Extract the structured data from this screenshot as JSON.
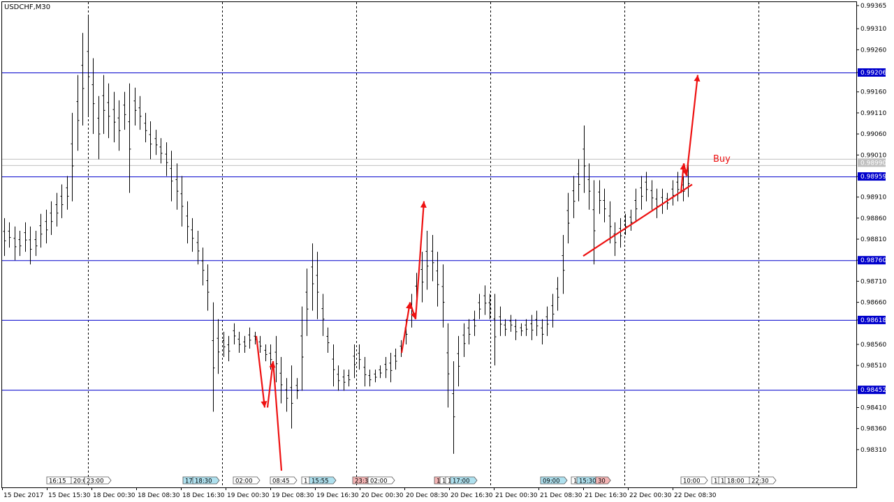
{
  "symbol_label": "USDCHF,M30",
  "annotation_buy": "Buy",
  "colors": {
    "background": "#ffffff",
    "candles": "#000000",
    "grid": "#000000",
    "hline": "#0000cc",
    "hline_label_bg": "#0000cc",
    "current_price_label_bg": "#c0c0c0",
    "arrows": "#ee1111",
    "buy_text": "#ee1111",
    "event_blue": "#aee0ee",
    "event_red": "#f5b5b5",
    "event_white": "#ffffff"
  },
  "chart_data": {
    "type": "candlestick-bar",
    "instrument": "USDCHF",
    "timeframe": "M30",
    "ylim": [
      0.9827,
      0.99365
    ],
    "y_ticks": [
      "0.99365",
      "0.99310",
      "0.99260",
      "0.99206",
      "0.99160",
      "0.99110",
      "0.99060",
      "0.99010",
      "0.98959",
      "0.98910",
      "0.98860",
      "0.98810",
      "0.98760",
      "0.98710",
      "0.98660",
      "0.98618",
      "0.98560",
      "0.98510",
      "0.98452",
      "0.98410",
      "0.98360",
      "0.98310"
    ],
    "x_ticks": [
      "15 Dec 2017",
      "15 Dec 15:30",
      "18 Dec 00:30",
      "18 Dec 08:30",
      "18 Dec 16:30",
      "19 Dec 00:30",
      "19 Dec 08:30",
      "19 Dec 16:30",
      "20 Dec 00:30",
      "20 Dec 08:30",
      "20 Dec 16:30",
      "21 Dec 00:30",
      "21 Dec 08:30",
      "21 Dec 16:30",
      "22 Dec 00:30",
      "22 Dec 08:30"
    ],
    "horizontal_levels": [
      {
        "value": 0.99206,
        "label": "0.99206"
      },
      {
        "value": 0.98959,
        "label": "0.98959"
      },
      {
        "value": 0.9876,
        "label": "0.98760"
      },
      {
        "value": 0.98618,
        "label": "0.98618"
      },
      {
        "value": 0.98452,
        "label": "0.98452"
      }
    ],
    "current_price_lines": [
      0.99,
      0.98985
    ],
    "current_price_label": "0.98990",
    "event_markers": [
      {
        "label": "16:15",
        "color": "white"
      },
      {
        "label": "20:0",
        "color": "white"
      },
      {
        "label": "23:00",
        "color": "white"
      },
      {
        "label": "17",
        "color": "blue"
      },
      {
        "label": "18:30",
        "color": "blue"
      },
      {
        "label": "02:00",
        "color": "white"
      },
      {
        "label": "08:45",
        "color": "white"
      },
      {
        "label": "1",
        "color": "white"
      },
      {
        "label": "15:55",
        "color": "blue"
      },
      {
        "label": "23:3",
        "color": "red"
      },
      {
        "label": "02:00",
        "color": "white"
      },
      {
        "label": "1",
        "color": "red"
      },
      {
        "label": "1",
        "color": "white"
      },
      {
        "label": "1",
        "color": "white"
      },
      {
        "label": "17:00",
        "color": "blue"
      },
      {
        "label": "09:00",
        "color": "blue"
      },
      {
        "label": "1",
        "color": "white"
      },
      {
        "label": "15:30",
        "color": "blue"
      },
      {
        "label": "30",
        "color": "red"
      },
      {
        "label": "10:00",
        "color": "white"
      },
      {
        "label": "1",
        "color": "white"
      },
      {
        "label": "1",
        "color": "white"
      },
      {
        "label": "18:00",
        "color": "white"
      },
      {
        "label": "22:30",
        "color": "white"
      }
    ],
    "price_series": [
      {
        "h": 0.9886,
        "l": 0.9877
      },
      {
        "h": 0.9885,
        "l": 0.9879
      },
      {
        "h": 0.9884,
        "l": 0.9876
      },
      {
        "h": 0.9883,
        "l": 0.9877
      },
      {
        "h": 0.9885,
        "l": 0.9878
      },
      {
        "h": 0.9884,
        "l": 0.9875
      },
      {
        "h": 0.9883,
        "l": 0.9877
      },
      {
        "h": 0.9887,
        "l": 0.9879
      },
      {
        "h": 0.9888,
        "l": 0.988
      },
      {
        "h": 0.989,
        "l": 0.9882
      },
      {
        "h": 0.9892,
        "l": 0.9884
      },
      {
        "h": 0.9894,
        "l": 0.9886
      },
      {
        "h": 0.9896,
        "l": 0.9888
      },
      {
        "h": 0.9911,
        "l": 0.989
      },
      {
        "h": 0.992,
        "l": 0.9902
      },
      {
        "h": 0.993,
        "l": 0.9908
      },
      {
        "h": 0.9934,
        "l": 0.991
      },
      {
        "h": 0.9924,
        "l": 0.9906
      },
      {
        "h": 0.9915,
        "l": 0.99
      },
      {
        "h": 0.992,
        "l": 0.9906
      },
      {
        "h": 0.9918,
        "l": 0.9905
      },
      {
        "h": 0.9916,
        "l": 0.9904
      },
      {
        "h": 0.9914,
        "l": 0.9902
      },
      {
        "h": 0.9916,
        "l": 0.9907
      },
      {
        "h": 0.9918,
        "l": 0.9892
      },
      {
        "h": 0.9917,
        "l": 0.9908
      },
      {
        "h": 0.9915,
        "l": 0.9907
      },
      {
        "h": 0.9911,
        "l": 0.9904
      },
      {
        "h": 0.9909,
        "l": 0.99
      },
      {
        "h": 0.9907,
        "l": 0.9901
      },
      {
        "h": 0.9905,
        "l": 0.9899
      },
      {
        "h": 0.9904,
        "l": 0.9896
      },
      {
        "h": 0.9902,
        "l": 0.989
      },
      {
        "h": 0.9899,
        "l": 0.9888
      },
      {
        "h": 0.9896,
        "l": 0.9884
      },
      {
        "h": 0.989,
        "l": 0.988
      },
      {
        "h": 0.9886,
        "l": 0.9878
      },
      {
        "h": 0.9883,
        "l": 0.9875
      },
      {
        "h": 0.9879,
        "l": 0.987
      },
      {
        "h": 0.9875,
        "l": 0.9864
      },
      {
        "h": 0.9866,
        "l": 0.984
      },
      {
        "h": 0.9862,
        "l": 0.9849
      },
      {
        "h": 0.9859,
        "l": 0.9853
      },
      {
        "h": 0.9858,
        "l": 0.9852
      },
      {
        "h": 0.9861,
        "l": 0.9856
      },
      {
        "h": 0.9859,
        "l": 0.9854
      },
      {
        "h": 0.9858,
        "l": 0.9854
      },
      {
        "h": 0.986,
        "l": 0.9855
      },
      {
        "h": 0.9859,
        "l": 0.9856
      },
      {
        "h": 0.9858,
        "l": 0.9854
      },
      {
        "h": 0.9856,
        "l": 0.9852
      },
      {
        "h": 0.9856,
        "l": 0.985
      },
      {
        "h": 0.9858,
        "l": 0.9847
      },
      {
        "h": 0.9853,
        "l": 0.9842
      },
      {
        "h": 0.9848,
        "l": 0.984
      },
      {
        "h": 0.9851,
        "l": 0.9836
      },
      {
        "h": 0.9848,
        "l": 0.9843
      },
      {
        "h": 0.9865,
        "l": 0.9845
      },
      {
        "h": 0.9874,
        "l": 0.9858
      },
      {
        "h": 0.988,
        "l": 0.9864
      },
      {
        "h": 0.9878,
        "l": 0.9862
      },
      {
        "h": 0.9868,
        "l": 0.9858
      },
      {
        "h": 0.986,
        "l": 0.9854
      },
      {
        "h": 0.9856,
        "l": 0.9846
      },
      {
        "h": 0.9851,
        "l": 0.9845
      },
      {
        "h": 0.985,
        "l": 0.9845
      },
      {
        "h": 0.985,
        "l": 0.9846
      },
      {
        "h": 0.9856,
        "l": 0.9848
      },
      {
        "h": 0.9856,
        "l": 0.985
      },
      {
        "h": 0.9853,
        "l": 0.9846
      },
      {
        "h": 0.985,
        "l": 0.9846
      },
      {
        "h": 0.985,
        "l": 0.9847
      },
      {
        "h": 0.9851,
        "l": 0.9848
      },
      {
        "h": 0.9853,
        "l": 0.9848
      },
      {
        "h": 0.9854,
        "l": 0.9847
      },
      {
        "h": 0.9855,
        "l": 0.985
      },
      {
        "h": 0.9857,
        "l": 0.9853
      },
      {
        "h": 0.9862,
        "l": 0.9856
      },
      {
        "h": 0.9868,
        "l": 0.986
      },
      {
        "h": 0.9873,
        "l": 0.9864
      },
      {
        "h": 0.9878,
        "l": 0.9866
      },
      {
        "h": 0.9883,
        "l": 0.9869
      },
      {
        "h": 0.9882,
        "l": 0.9871
      },
      {
        "h": 0.9878,
        "l": 0.9865
      },
      {
        "h": 0.9875,
        "l": 0.986
      },
      {
        "h": 0.9861,
        "l": 0.9841
      },
      {
        "h": 0.9852,
        "l": 0.983
      },
      {
        "h": 0.9858,
        "l": 0.9846
      },
      {
        "h": 0.9861,
        "l": 0.9853
      },
      {
        "h": 0.9862,
        "l": 0.9856
      },
      {
        "h": 0.9864,
        "l": 0.9858
      },
      {
        "h": 0.9868,
        "l": 0.9862
      },
      {
        "h": 0.987,
        "l": 0.9863
      },
      {
        "h": 0.9868,
        "l": 0.9862
      },
      {
        "h": 0.9868,
        "l": 0.9851
      },
      {
        "h": 0.9865,
        "l": 0.9858
      },
      {
        "h": 0.9862,
        "l": 0.9858
      },
      {
        "h": 0.9863,
        "l": 0.9859
      },
      {
        "h": 0.9862,
        "l": 0.9857
      },
      {
        "h": 0.9861,
        "l": 0.9858
      },
      {
        "h": 0.9862,
        "l": 0.9858
      },
      {
        "h": 0.9863,
        "l": 0.9857
      },
      {
        "h": 0.9864,
        "l": 0.9858
      },
      {
        "h": 0.9862,
        "l": 0.9856
      },
      {
        "h": 0.9865,
        "l": 0.9858
      },
      {
        "h": 0.9868,
        "l": 0.986
      },
      {
        "h": 0.9872,
        "l": 0.9864
      },
      {
        "h": 0.9882,
        "l": 0.9868
      },
      {
        "h": 0.9892,
        "l": 0.988
      },
      {
        "h": 0.9896,
        "l": 0.9886
      },
      {
        "h": 0.99,
        "l": 0.989
      },
      {
        "h": 0.9908,
        "l": 0.9892
      },
      {
        "h": 0.9899,
        "l": 0.9888
      },
      {
        "h": 0.9895,
        "l": 0.9875
      },
      {
        "h": 0.9895,
        "l": 0.9887
      },
      {
        "h": 0.9893,
        "l": 0.9885
      },
      {
        "h": 0.989,
        "l": 0.988
      },
      {
        "h": 0.9885,
        "l": 0.9877
      },
      {
        "h": 0.9886,
        "l": 0.9879
      },
      {
        "h": 0.9887,
        "l": 0.9882
      },
      {
        "h": 0.9888,
        "l": 0.9883
      },
      {
        "h": 0.9893,
        "l": 0.9885
      },
      {
        "h": 0.9896,
        "l": 0.9888
      },
      {
        "h": 0.9897,
        "l": 0.989
      },
      {
        "h": 0.9895,
        "l": 0.9888
      },
      {
        "h": 0.9893,
        "l": 0.9886
      },
      {
        "h": 0.9893,
        "l": 0.9887
      },
      {
        "h": 0.9892,
        "l": 0.9888
      },
      {
        "h": 0.9895,
        "l": 0.9889
      },
      {
        "h": 0.9897,
        "l": 0.989
      },
      {
        "h": 0.9896,
        "l": 0.989
      },
      {
        "h": 0.9899,
        "l": 0.9891
      }
    ],
    "arrows": [
      {
        "x1": "19 Dec 06:00",
        "y1": 0.9858,
        "x2": "19 Dec 07:30",
        "y2": 0.9841,
        "head": true
      },
      {
        "x1": "19 Dec 08:00",
        "y1": 0.9841,
        "x2": "19 Dec 09:00",
        "y2": 0.9852,
        "head": true
      },
      {
        "x1": "19 Dec 09:00",
        "y1": 0.9852,
        "x2": "19 Dec 10:30",
        "y2": 0.9826,
        "head": false
      },
      {
        "x1": "20 Dec 08:00",
        "y1": 0.9854,
        "x2": "20 Dec 09:30",
        "y2": 0.9866,
        "head": true
      },
      {
        "x1": "20 Dec 09:30",
        "y1": 0.9866,
        "x2": "20 Dec 10:30",
        "y2": 0.9862,
        "head": true
      },
      {
        "x1": "20 Dec 10:30",
        "y1": 0.9862,
        "x2": "20 Dec 12:00",
        "y2": 0.989,
        "head": true
      },
      {
        "x1": "21 Dec 16:30",
        "y1": 0.9877,
        "x2": "22 Dec 12:00",
        "y2": 0.9894,
        "head": false
      },
      {
        "x1": "22 Dec 10:00",
        "y1": 0.9892,
        "x2": "22 Dec 10:30",
        "y2": 0.9899,
        "head": true
      },
      {
        "x1": "22 Dec 10:30",
        "y1": 0.9899,
        "x2": "22 Dec 11:00",
        "y2": 0.9896,
        "head": true
      },
      {
        "x1": "22 Dec 11:00",
        "y1": 0.9896,
        "x2": "22 Dec 13:00",
        "y2": 0.992,
        "head": true
      }
    ]
  }
}
